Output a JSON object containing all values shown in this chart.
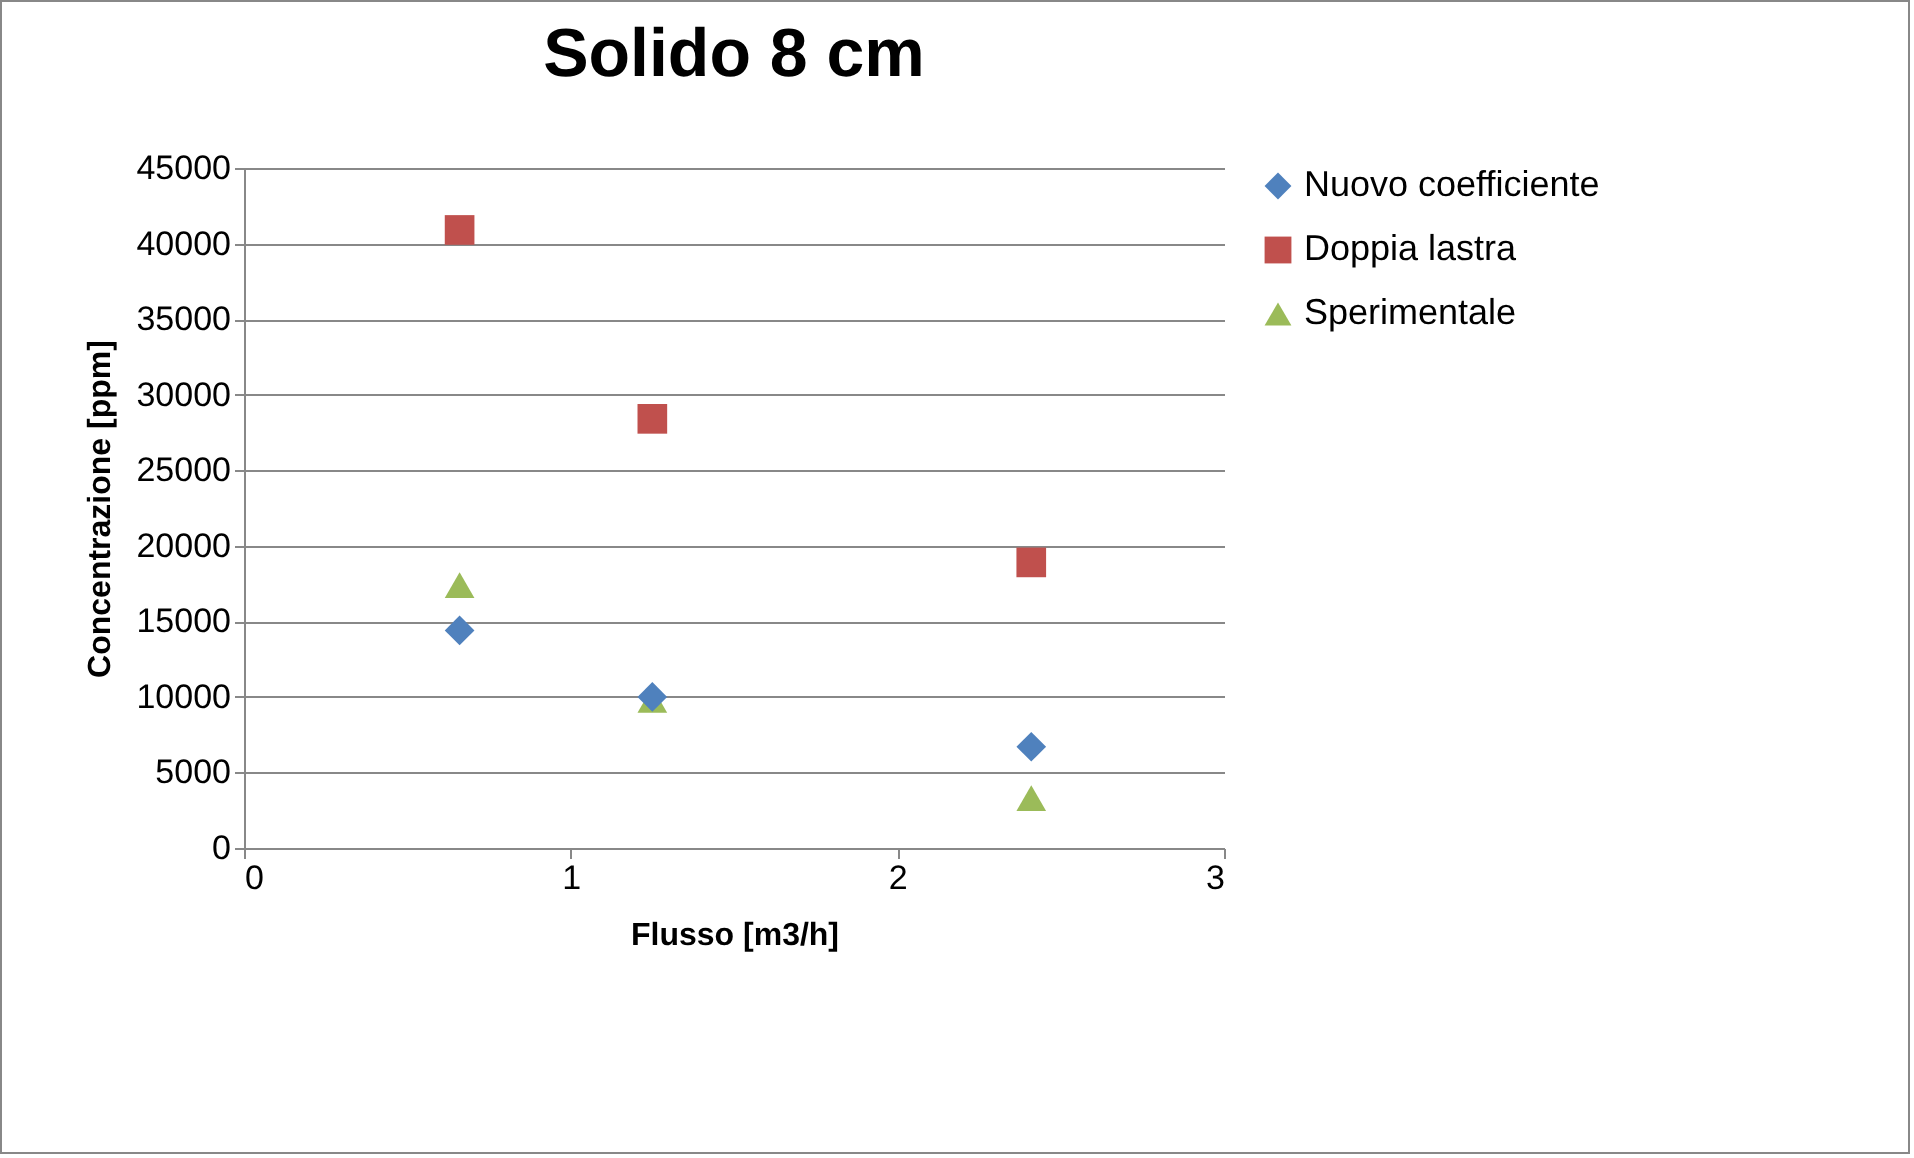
{
  "chart_data": {
    "type": "scatter",
    "title": "Solido 8 cm",
    "xlabel": "Flusso [m3/h]",
    "ylabel": "Concentrazione [ppm]",
    "xlim": [
      0,
      3
    ],
    "xticks": [
      0,
      1,
      2,
      3
    ],
    "ylim": [
      0,
      45000
    ],
    "yticks": [
      0,
      5000,
      10000,
      15000,
      20000,
      25000,
      30000,
      35000,
      40000,
      45000
    ],
    "grid": "y",
    "legend": "right",
    "series": [
      {
        "name": "Nuovo coefficiente",
        "color": "#4f81bd",
        "marker": "diamond",
        "x": [
          0.66,
          1.25,
          2.41
        ],
        "values": [
          14400,
          10000,
          6700
        ]
      },
      {
        "name": "Doppia lastra",
        "color": "#c0504d",
        "marker": "square",
        "x": [
          0.66,
          1.25,
          2.41
        ],
        "values": [
          40900,
          28400,
          18900
        ]
      },
      {
        "name": "Sperimentale",
        "color": "#9bbb59",
        "marker": "triangle",
        "x": [
          0.66,
          1.25,
          2.41
        ],
        "values": [
          17400,
          9800,
          3300
        ]
      }
    ]
  }
}
